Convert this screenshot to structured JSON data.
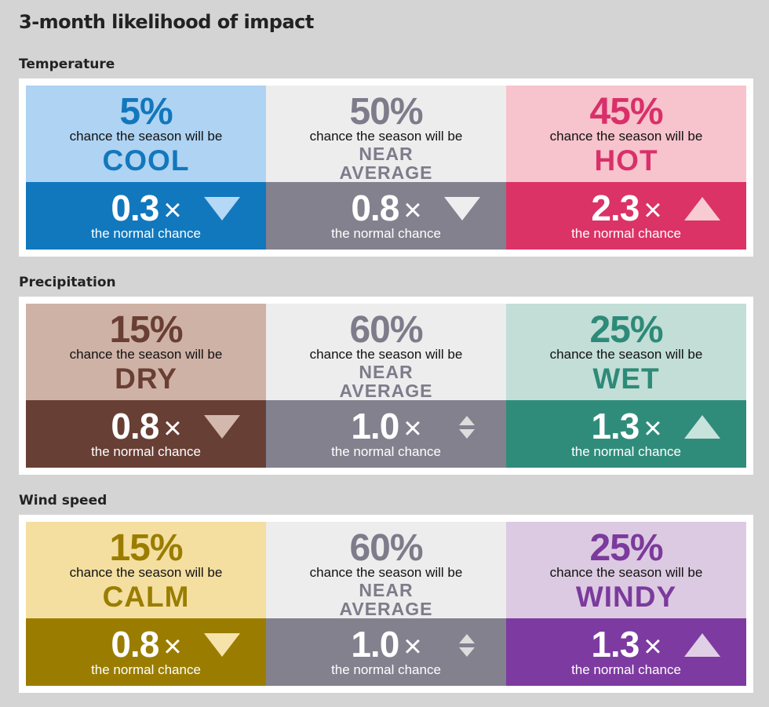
{
  "title": "3-month likelihood of impact",
  "chance_text": "chance the season will be",
  "normal_text": "the normal chance",
  "times": "×",
  "sections": [
    {
      "title": "Temperature",
      "cells": [
        {
          "pct": "5%",
          "label": "COOL",
          "mult": "0.3",
          "arrow": "down",
          "light": "#aed3f3",
          "text": "#1377bc",
          "dark": "#1178bd",
          "tri": "#b4d8f5"
        },
        {
          "pct": "50%",
          "label": "NEAR AVERAGE",
          "mult": "0.8",
          "arrow": "down",
          "light": "#ededed",
          "text": "#7e7c8b",
          "dark": "#83818e",
          "tri": "#eeeeee"
        },
        {
          "pct": "45%",
          "label": "HOT",
          "mult": "2.3",
          "arrow": "up",
          "light": "#f7c3cc",
          "text": "#d9306a",
          "dark": "#db3366",
          "tri": "#f8cbd3"
        }
      ]
    },
    {
      "title": "Precipitation",
      "cells": [
        {
          "pct": "15%",
          "label": "DRY",
          "mult": "0.8",
          "arrow": "down",
          "light": "#cfb2a6",
          "text": "#6a3f33",
          "dark": "#683f35",
          "tri": "#d3b8ad"
        },
        {
          "pct": "60%",
          "label": "NEAR AVERAGE",
          "mult": "1.0",
          "arrow": "both",
          "light": "#ededed",
          "text": "#7e7c8b",
          "dark": "#83818e",
          "tri": "#eeeeee"
        },
        {
          "pct": "25%",
          "label": "WET",
          "mult": "1.3",
          "arrow": "up",
          "light": "#c2ded7",
          "text": "#2e8a78",
          "dark": "#308c7a",
          "tri": "#c8e2dc"
        }
      ]
    },
    {
      "title": "Wind speed",
      "cells": [
        {
          "pct": "15%",
          "label": "CALM",
          "mult": "0.8",
          "arrow": "down",
          "light": "#f4dfa0",
          "text": "#9a7d00",
          "dark": "#9a7d00",
          "tri": "#f6e3aa"
        },
        {
          "pct": "60%",
          "label": "NEAR AVERAGE",
          "mult": "1.0",
          "arrow": "both",
          "light": "#ededed",
          "text": "#7e7c8b",
          "dark": "#83818e",
          "tri": "#eeeeee"
        },
        {
          "pct": "25%",
          "label": "WINDY",
          "mult": "1.3",
          "arrow": "up",
          "light": "#dccae2",
          "text": "#7b3a9c",
          "dark": "#7d3aa0",
          "tri": "#e0d0e6"
        }
      ]
    }
  ]
}
